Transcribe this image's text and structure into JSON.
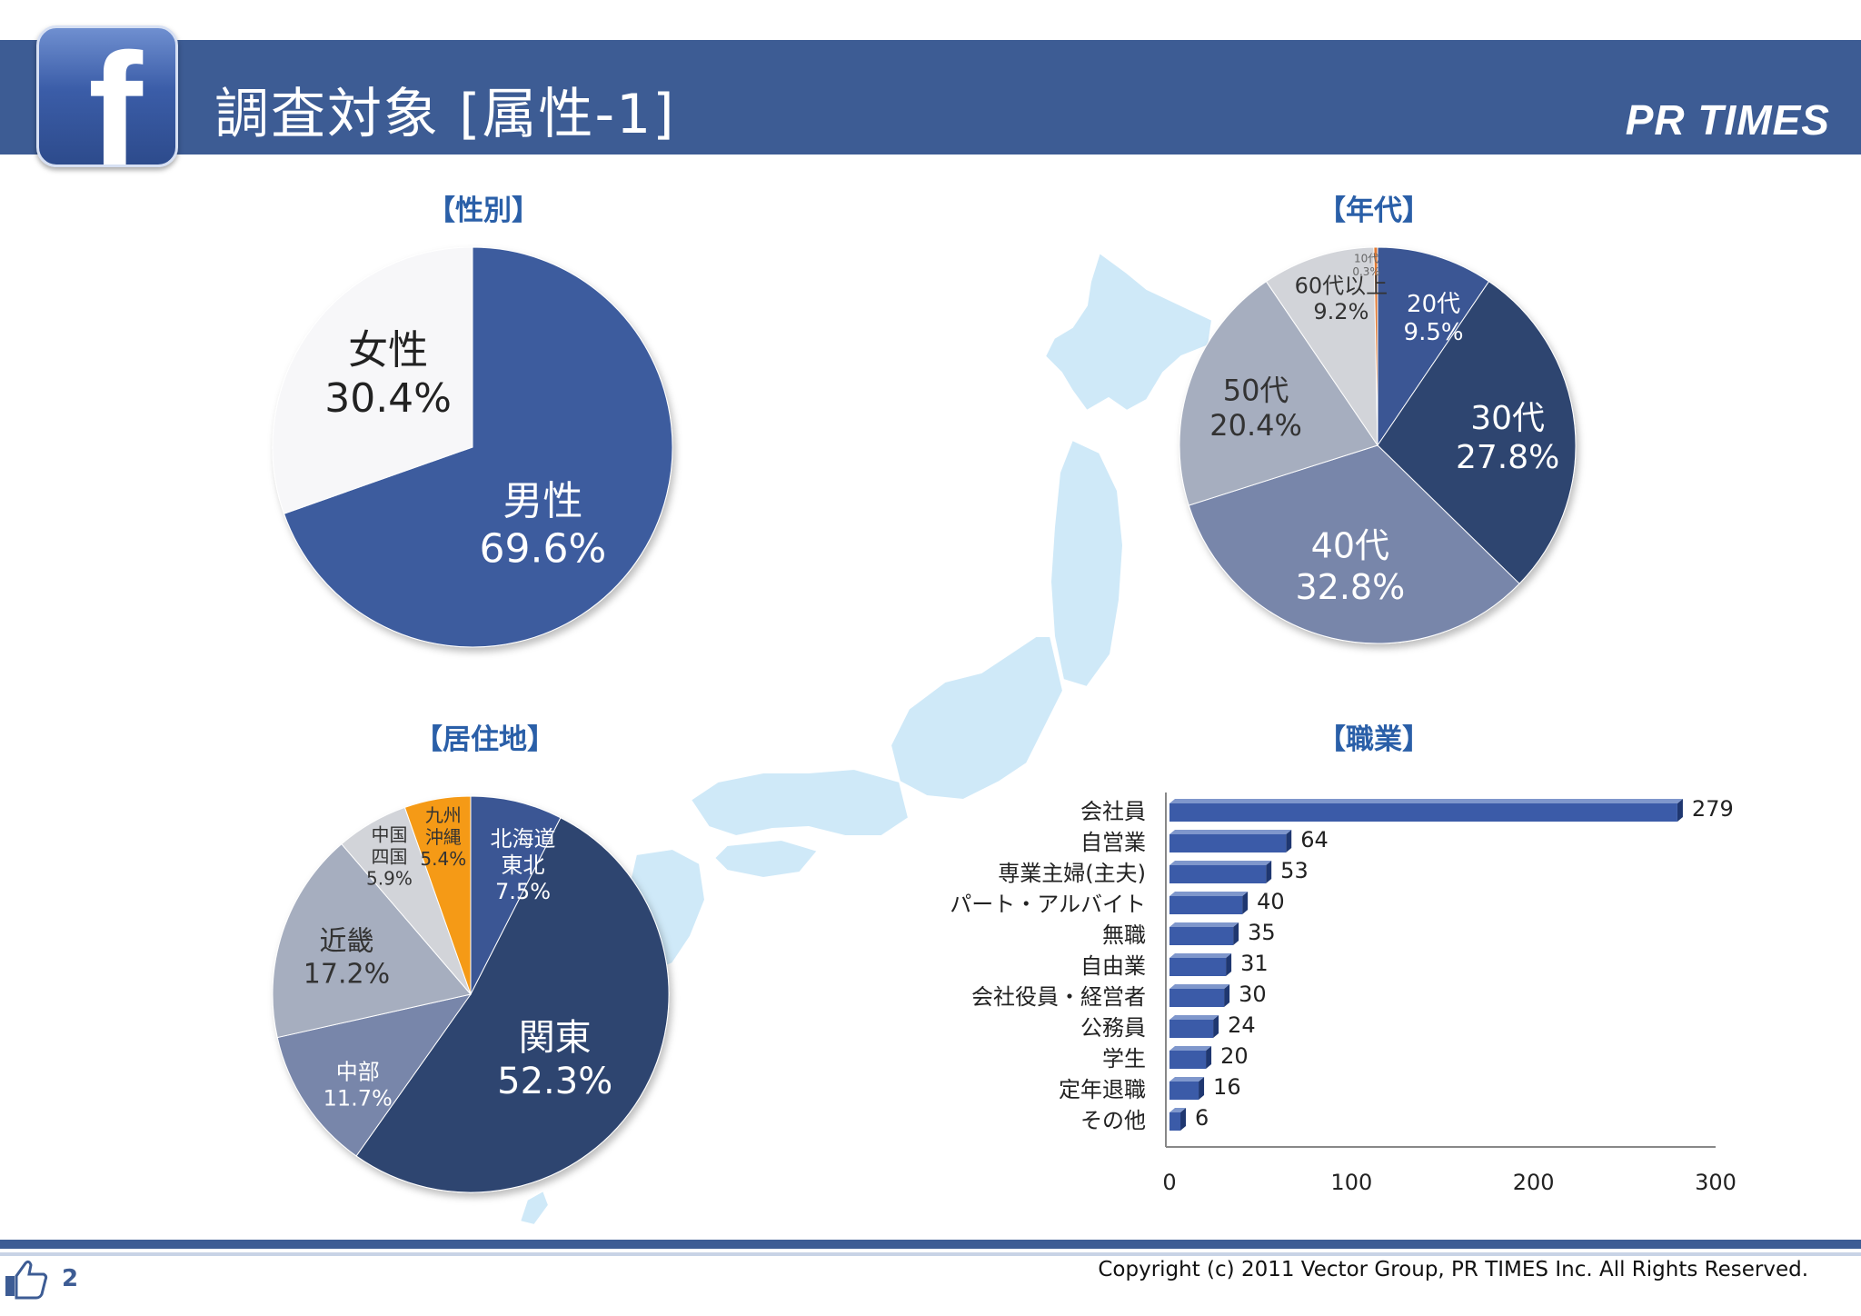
{
  "header": {
    "title": "調査対象 [属性-1]",
    "brand": "PR TIMES",
    "logo_letter": "f",
    "icon": "facebook-logo-icon"
  },
  "footer": {
    "page_number": "2",
    "copyright": "Copyright (c) 2011 Vector Group, PR TIMES Inc. All Rights Reserved.",
    "icon": "thumbs-up-icon"
  },
  "colors": {
    "header": "#3d5c94",
    "section_title": "#2a5fa8",
    "bar": "#3b5ba8",
    "map": "#cfe9f8"
  },
  "chart_data": [
    {
      "type": "pie",
      "title": "【性別】",
      "slices": [
        {
          "name": "男性",
          "value": 69.6,
          "label": "69.6%",
          "color": "#3e5c9e"
        },
        {
          "name": "女性",
          "value": 30.4,
          "label": "30.4%",
          "color": "#f7f7f9"
        }
      ]
    },
    {
      "type": "pie",
      "title": "【年代】",
      "slices": [
        {
          "name": "20代",
          "value": 9.5,
          "label": "9.5%",
          "color": "#3a5794"
        },
        {
          "name": "30代",
          "value": 27.8,
          "label": "27.8%",
          "color": "#2f4470"
        },
        {
          "name": "40代",
          "value": 32.8,
          "label": "32.8%",
          "color": "#7886aa"
        },
        {
          "name": "50代",
          "value": 20.4,
          "label": "20.4%",
          "color": "#a6aebf"
        },
        {
          "name": "60代以上",
          "value": 9.2,
          "label": "9.2%",
          "color": "#d2d4d9"
        },
        {
          "name": "10代",
          "value": 0.3,
          "label": "0.3%",
          "color": "#e07830"
        }
      ]
    },
    {
      "type": "pie",
      "title": "【居住地】",
      "slices": [
        {
          "name": "北海道 東北",
          "value": 7.5,
          "label": "7.5%",
          "color": "#3a5794"
        },
        {
          "name": "関東",
          "value": 52.3,
          "label": "52.3%",
          "color": "#2f4470"
        },
        {
          "name": "中部",
          "value": 11.7,
          "label": "11.7%",
          "color": "#7886aa"
        },
        {
          "name": "近畿",
          "value": 17.2,
          "label": "17.2%",
          "color": "#a6aebf"
        },
        {
          "name": "中国 四国",
          "value": 5.9,
          "label": "5.9%",
          "color": "#d2d4d9"
        },
        {
          "name": "九州 沖縄",
          "value": 5.4,
          "label": "5.4%",
          "color": "#f59a12"
        }
      ]
    },
    {
      "type": "bar",
      "orientation": "horizontal",
      "title": "【職業】",
      "categories": [
        "会社員",
        "自営業",
        "専業主婦(主夫)",
        "パート・アルバイト",
        "無職",
        "自由業",
        "会社役員・経営者",
        "公務員",
        "学生",
        "定年退職",
        "その他"
      ],
      "values": [
        279,
        64,
        53,
        40,
        35,
        31,
        30,
        24,
        20,
        16,
        6
      ],
      "xlim": [
        0,
        300
      ],
      "xticks": [
        0,
        100,
        200,
        300
      ],
      "grid": false
    }
  ]
}
